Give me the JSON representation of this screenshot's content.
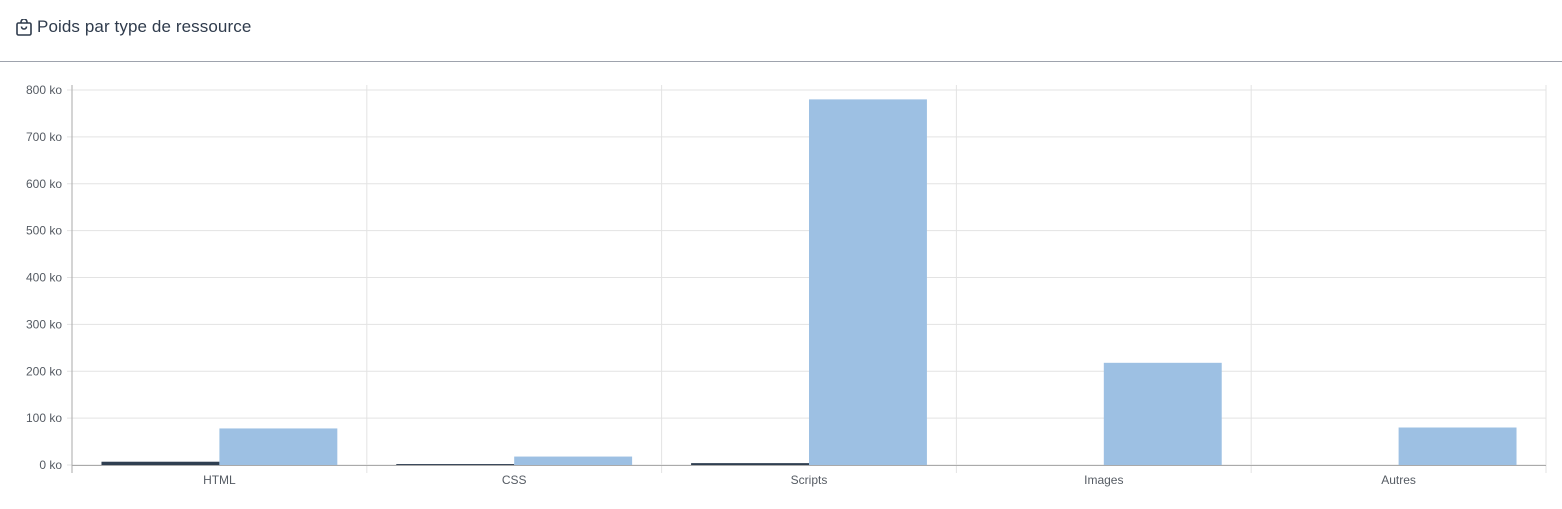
{
  "header": {
    "title": "Poids par type de ressource",
    "icon": "shopping-bag-icon"
  },
  "colors": {
    "series_dark": "#2f3f51",
    "series_light": "#9dc0e3",
    "grid": "#e3e3e3",
    "axis": "#aaaaaa",
    "header_border": "#9ea3ad",
    "text": "#555b63"
  },
  "chart_data": {
    "type": "bar",
    "title": "Poids par type de ressource",
    "categories": [
      "HTML",
      "CSS",
      "Scripts",
      "Images",
      "Autres"
    ],
    "series": [
      {
        "values": [
          7,
          2,
          4,
          0,
          0
        ]
      },
      {
        "values": [
          78,
          18,
          780,
          218,
          80
        ]
      }
    ],
    "y_ticks": [
      "0 ko",
      "100 ko",
      "200 ko",
      "300 ko",
      "400 ko",
      "500 ko",
      "600 ko",
      "700 ko",
      "800 ko"
    ],
    "unit": "ko",
    "ylim": [
      0,
      800
    ],
    "grid": true,
    "legend": "none"
  }
}
